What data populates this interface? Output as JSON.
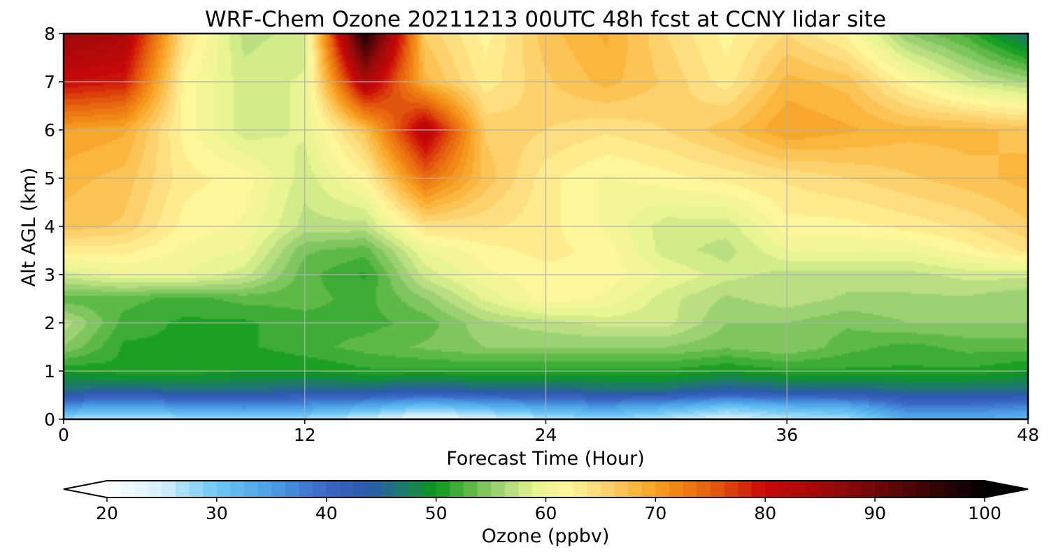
{
  "chart_data": {
    "type": "heatmap",
    "title": "WRF-Chem Ozone  20211213 00UTC 48h fcst at CCNY lidar site",
    "xlabel": "Forecast Time (Hour)",
    "ylabel": "Alt AGL (km)",
    "xlim": [
      0,
      48
    ],
    "ylim": [
      0,
      8
    ],
    "x_ticks": [
      0,
      12,
      24,
      36,
      48
    ],
    "y_ticks": [
      0,
      1,
      2,
      3,
      4,
      5,
      6,
      7,
      8
    ],
    "grid": true,
    "colorbar": {
      "label": "Ozone  (ppbv)",
      "min": 20,
      "max": 100,
      "ticks": [
        20,
        30,
        40,
        50,
        60,
        70,
        80,
        90,
        100
      ],
      "extend": "both",
      "stops": [
        {
          "value": 20,
          "color": "#ffffff"
        },
        {
          "value": 25,
          "color": "#d6f0fb"
        },
        {
          "value": 30,
          "color": "#6cc7f4"
        },
        {
          "value": 35,
          "color": "#4b9fe6"
        },
        {
          "value": 40,
          "color": "#3a66c4"
        },
        {
          "value": 44,
          "color": "#2a5aaa"
        },
        {
          "value": 47,
          "color": "#1d7a6a"
        },
        {
          "value": 50,
          "color": "#0a9a1a"
        },
        {
          "value": 53,
          "color": "#5cb845"
        },
        {
          "value": 56,
          "color": "#a6d67a"
        },
        {
          "value": 59,
          "color": "#e6f590"
        },
        {
          "value": 62,
          "color": "#fff79a"
        },
        {
          "value": 65,
          "color": "#fdd979"
        },
        {
          "value": 68,
          "color": "#fbb83f"
        },
        {
          "value": 71,
          "color": "#f49318"
        },
        {
          "value": 75,
          "color": "#e6600e"
        },
        {
          "value": 80,
          "color": "#c90808"
        },
        {
          "value": 86,
          "color": "#9a0a0a"
        },
        {
          "value": 93,
          "color": "#4e0606"
        },
        {
          "value": 100,
          "color": "#000000"
        }
      ]
    },
    "grid_values": {
      "x": [
        0,
        3,
        6,
        9,
        12,
        15,
        18,
        21,
        24,
        27,
        30,
        33,
        36,
        39,
        42,
        45,
        48
      ],
      "y": [
        0,
        0.25,
        0.6,
        1,
        1.5,
        2,
        2.5,
        3,
        3.5,
        4,
        5,
        6,
        7,
        8
      ],
      "z": [
        [
          27,
          26,
          27,
          28,
          27,
          25,
          22,
          24,
          26,
          28,
          26,
          24,
          26,
          27,
          33,
          33,
          32
        ],
        [
          35,
          34,
          35,
          36,
          35,
          33,
          30,
          32,
          34,
          35,
          33,
          30,
          32,
          33,
          38,
          38,
          37
        ],
        [
          46,
          45,
          46,
          46,
          45,
          45,
          44,
          45,
          45,
          46,
          46,
          44,
          45,
          45,
          46,
          46,
          46
        ],
        [
          50,
          51,
          51,
          50,
          50,
          51,
          51,
          51,
          51,
          51,
          51,
          50,
          51,
          51,
          51,
          51,
          50
        ],
        [
          55,
          51,
          51,
          51,
          52,
          53,
          54,
          55,
          55,
          55,
          55,
          54,
          55,
          53,
          52,
          53,
          53
        ],
        [
          57,
          52,
          51,
          51,
          52,
          52,
          53,
          56,
          57,
          58,
          58,
          55,
          55,
          54,
          55,
          55,
          55
        ],
        [
          53,
          53,
          52,
          53,
          53,
          52,
          55,
          59,
          62,
          61,
          58,
          56,
          57,
          56,
          56,
          56,
          55
        ],
        [
          58,
          60,
          60,
          58,
          53,
          51,
          58,
          61,
          62,
          62,
          60,
          58,
          57,
          57,
          57,
          58,
          58
        ],
        [
          63,
          63,
          61,
          60,
          54,
          53,
          60,
          62,
          63,
          62,
          58,
          57,
          60,
          60,
          60,
          62,
          64
        ],
        [
          67,
          66,
          62,
          61,
          57,
          57,
          64,
          64,
          63,
          61,
          58,
          58,
          62,
          62,
          63,
          64,
          66
        ],
        [
          68,
          67,
          63,
          62,
          58,
          62,
          74,
          67,
          63,
          61,
          62,
          63,
          64,
          65,
          66,
          67,
          68
        ],
        [
          70,
          69,
          62,
          58,
          59,
          67,
          83,
          66,
          65,
          64,
          65,
          67,
          70,
          69,
          68,
          68,
          67
        ],
        [
          80,
          79,
          62,
          58,
          59,
          84,
          68,
          63,
          66,
          68,
          66,
          63,
          68,
          67,
          62,
          58,
          56
        ],
        [
          86,
          84,
          64,
          57,
          58,
          98,
          66,
          62,
          67,
          69,
          65,
          62,
          65,
          62,
          55,
          52,
          46
        ]
      ]
    }
  }
}
